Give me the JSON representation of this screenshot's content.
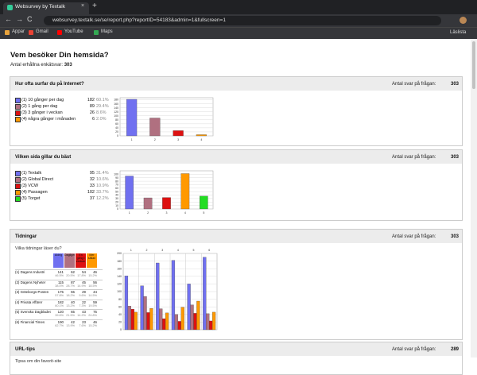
{
  "browser": {
    "tab_title": "Websurvey by Textalk",
    "url": "websurvey.textalk.se/se/report.php?reportID=54183&admin=1&fullscreen=1",
    "bookmarks": [
      "Appar",
      "Gmail",
      "YouTube",
      "Maps"
    ],
    "reading_list": "Läslista"
  },
  "page": {
    "title": "Vem besöker Din hemsida?",
    "responses_label": "Antal erhållna enkätsvar:",
    "responses": 303
  },
  "questions": [
    {
      "title": "Hur ofta surfar du på Internet?",
      "answers_label": "Antal svar på frågan:",
      "answers": 303,
      "options": [
        {
          "label": "(1) 10 gånger per dag",
          "color": "#7070f0",
          "count": 182,
          "percent": "60.1%"
        },
        {
          "label": "(2) 1 gång per dag",
          "color": "#b07080",
          "count": 89,
          "percent": "29.4%"
        },
        {
          "label": "(3) 3 gånger i veckan",
          "color": "#dd1111",
          "count": 26,
          "percent": "8.6%"
        },
        {
          "label": "(4) några gånger i månaden",
          "color": "#ff9900",
          "count": 6,
          "percent": "2.0%"
        }
      ],
      "chart": {
        "ylim": [
          0,
          190
        ],
        "yticks": [
          0,
          20,
          40,
          60,
          80,
          100,
          120,
          140,
          160,
          180
        ],
        "xlabels": [
          "1",
          "2",
          "3",
          "4"
        ]
      }
    },
    {
      "title": "Vilken sida gillar du bäst",
      "answers_label": "Antal svar på frågan:",
      "answers": 303,
      "options": [
        {
          "label": "(1) Textalk",
          "color": "#7070f0",
          "count": 95,
          "percent": "31.4%"
        },
        {
          "label": "(2) Global Direct",
          "color": "#b07080",
          "count": 32,
          "percent": "10.6%"
        },
        {
          "label": "(3) VCW",
          "color": "#dd1111",
          "count": 33,
          "percent": "10.9%"
        },
        {
          "label": "(4) Passagen",
          "color": "#ff9900",
          "count": 102,
          "percent": "33.7%"
        },
        {
          "label": "(5) Torget",
          "color": "#22dd22",
          "count": 37,
          "percent": "12.2%"
        }
      ],
      "chart": {
        "ylim": [
          0,
          110
        ],
        "yticks": [
          0,
          10,
          20,
          30,
          40,
          50,
          60,
          70,
          80,
          90,
          100
        ],
        "xlabels": [
          "1",
          "2",
          "3",
          "4",
          "5"
        ]
      }
    },
    {
      "title": "Tidningar",
      "subtitle": "Vilka tidningar läser du?",
      "answers_label": "Antal svar på frågan:",
      "answers": 303,
      "columns": [
        {
          "label": "Aldrig",
          "color": "#7070f0"
        },
        {
          "label": "Dagligen",
          "color": "#b07080"
        },
        {
          "label": "En gång i veckan",
          "color": "#dd1111"
        },
        {
          "label": "Mer sällan",
          "color": "#ff9900"
        }
      ],
      "rows": [
        {
          "label": "(1) Dagens Industri",
          "counts": [
            141,
            62,
            54,
            46
          ],
          "percents": [
            "46.5%",
            "20.5%",
            "17.8%",
            "15.2%"
          ]
        },
        {
          "label": "(2) Dagens Nyheter",
          "counts": [
            115,
            87,
            45,
            56
          ],
          "percents": [
            "38.0%",
            "28.7%",
            "14.9%",
            "18.5%"
          ]
        },
        {
          "label": "(3) Göteborgs-Posten",
          "counts": [
            175,
            55,
            29,
            44
          ],
          "percents": [
            "57.8%",
            "18.2%",
            "9.6%",
            "14.5%"
          ]
        },
        {
          "label": "(4) Privata Affärer",
          "counts": [
            182,
            40,
            22,
            59
          ],
          "percents": [
            "60.1%",
            "13.2%",
            "7.3%",
            "19.5%"
          ]
        },
        {
          "label": "(5) Svenska Dagbladet",
          "counts": [
            120,
            65,
            43,
            75
          ],
          "percents": [
            "39.6%",
            "21.5%",
            "14.2%",
            "24.8%"
          ]
        },
        {
          "label": "(6) Financial Times",
          "counts": [
            190,
            42,
            23,
            46
          ],
          "percents": [
            "62.7%",
            "13.9%",
            "7.6%",
            "15.2%"
          ]
        }
      ],
      "chart": {
        "ylim": [
          0,
          200
        ],
        "yticks": [
          0,
          20,
          40,
          60,
          80,
          100,
          120,
          140,
          160,
          180,
          200
        ],
        "xlabels": [
          "1",
          "2",
          "3",
          "4",
          "5",
          "6"
        ]
      }
    },
    {
      "title": "URL-tips",
      "subtitle": "Tipsa om din favorit-site",
      "answers_label": "Antal svar på frågan:",
      "answers": 289
    }
  ]
}
